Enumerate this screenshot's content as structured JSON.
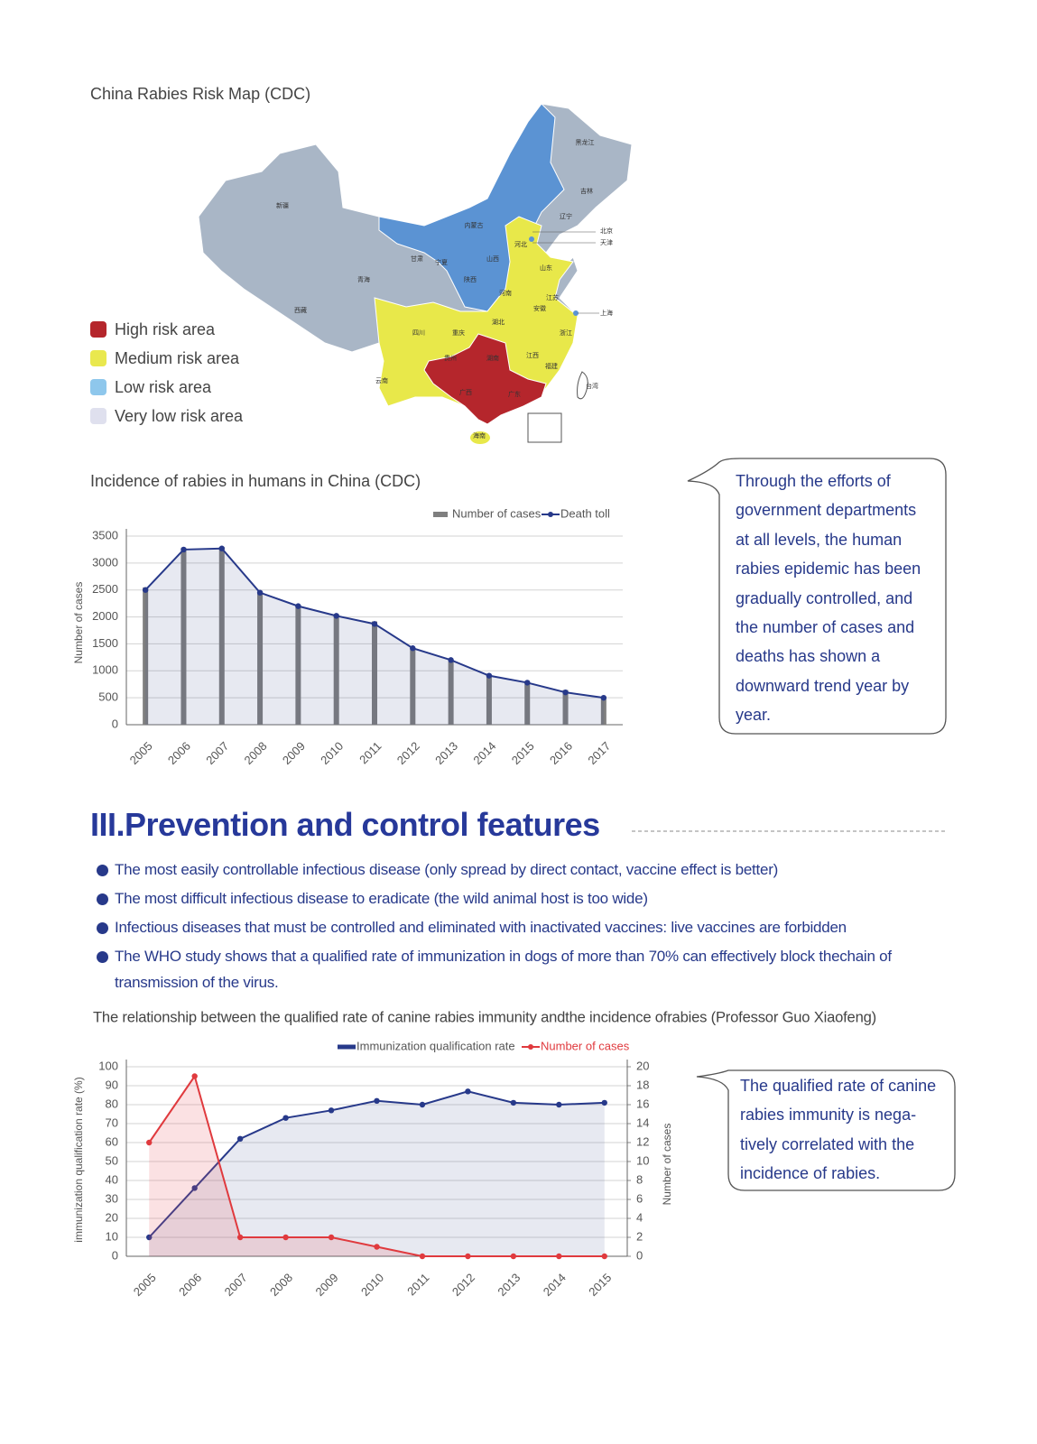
{
  "map": {
    "title": "China Rabies Risk Map (CDC)",
    "legend": [
      {
        "label": "High risk area",
        "color": "#b5262c"
      },
      {
        "label": "Medium risk area",
        "color": "#e9e84e"
      },
      {
        "label": "Low risk area",
        "color": "#8ec7ec"
      },
      {
        "label": "Very low risk area",
        "color": "#dfe0ee"
      }
    ],
    "provinces": [
      "黑龙江",
      "吉林",
      "辽宁",
      "北京",
      "天津",
      "内蒙古",
      "河北",
      "山东",
      "新疆",
      "甘肃",
      "宁夏",
      "山西",
      "青海",
      "陕西",
      "河南",
      "江苏",
      "西藏",
      "四川",
      "重庆",
      "湖北",
      "安徽",
      "上海",
      "浙江",
      "贵州",
      "湖南",
      "江西",
      "福建",
      "云南",
      "广西",
      "广东",
      "台湾",
      "海南"
    ]
  },
  "callout_1": {
    "lines": [
      "Through the efforts of",
      "government departments",
      "at all levels, the human",
      "rabies epidemic has been",
      "gradually controlled, and",
      "the number of cases and",
      "deaths has shown a",
      "downward trend year by",
      "year."
    ]
  },
  "section": {
    "title": "III.Prevention and control features",
    "bullets": [
      "The most easily controllable infectious disease (only spread by direct contact, vaccine effect is better)",
      "The most difficult infectious disease to eradicate (the wild animal host is too wide)",
      "Infectious diseases that must be controlled and eliminated with inactivated vaccines: live vaccines are forbidden",
      "The WHO study shows that a qualified rate of immunization in dogs of more than 70% can effectively block thechain of transmission of the virus."
    ]
  },
  "callout_2": {
    "lines": [
      "The qualified rate of canine",
      "rabies immunity is nega-",
      "tively correlated with the",
      "incidence of rabies."
    ]
  },
  "chart_data": [
    {
      "type": "combo",
      "title": "Incidence of rabies in humans in China (CDC)",
      "y_label": "Number of cases",
      "categories": [
        "2005",
        "2006",
        "2007",
        "2008",
        "2009",
        "2010",
        "2011",
        "2012",
        "2013",
        "2014",
        "2015",
        "2016",
        "2017"
      ],
      "series": [
        {
          "name": "Number of cases",
          "type": "bar",
          "color": "#7f7f7f",
          "values": [
            2548,
            3279,
            3300,
            2466,
            2213,
            2048,
            1917,
            1425,
            1172,
            924,
            801,
            644,
            516
          ]
        },
        {
          "name": "Death toll",
          "type": "line",
          "color": "#27398a",
          "values": [
            2500,
            3250,
            3270,
            2450,
            2200,
            2020,
            1870,
            1420,
            1200,
            910,
            780,
            600,
            500
          ]
        }
      ],
      "ylim": [
        0,
        3500
      ],
      "yticks": [
        0,
        500,
        1000,
        1500,
        2000,
        2500,
        3000,
        3500
      ],
      "grid": true
    },
    {
      "type": "line",
      "title": "The relationship between the qualified rate of canine rabies immunity andthe incidence ofrabies (Professor Guo Xiaofeng)",
      "y_label": "immunization qualification rate (%)",
      "y2_label": "Number of cases",
      "categories": [
        "2005",
        "2006",
        "2007",
        "2008",
        "2009",
        "2010",
        "2011",
        "2012",
        "2013",
        "2014",
        "2015"
      ],
      "series": [
        {
          "name": "Immunization qualification rate",
          "color": "#27398a",
          "values": [
            10,
            36,
            62,
            73,
            77,
            82,
            80,
            87,
            81,
            80,
            81
          ]
        },
        {
          "name": "Number of cases",
          "color": "#e03a3e",
          "axis": "y2",
          "values": [
            12,
            19,
            2,
            2,
            2,
            1,
            0,
            0,
            0,
            0,
            0
          ]
        }
      ],
      "ylim": [
        0,
        100
      ],
      "yticks": [
        0,
        10,
        20,
        30,
        40,
        50,
        60,
        70,
        80,
        90,
        100
      ],
      "y2lim": [
        0,
        20
      ],
      "y2ticks": [
        0,
        2,
        4,
        6,
        8,
        10,
        12,
        14,
        16,
        18,
        20
      ],
      "grid": true
    }
  ]
}
